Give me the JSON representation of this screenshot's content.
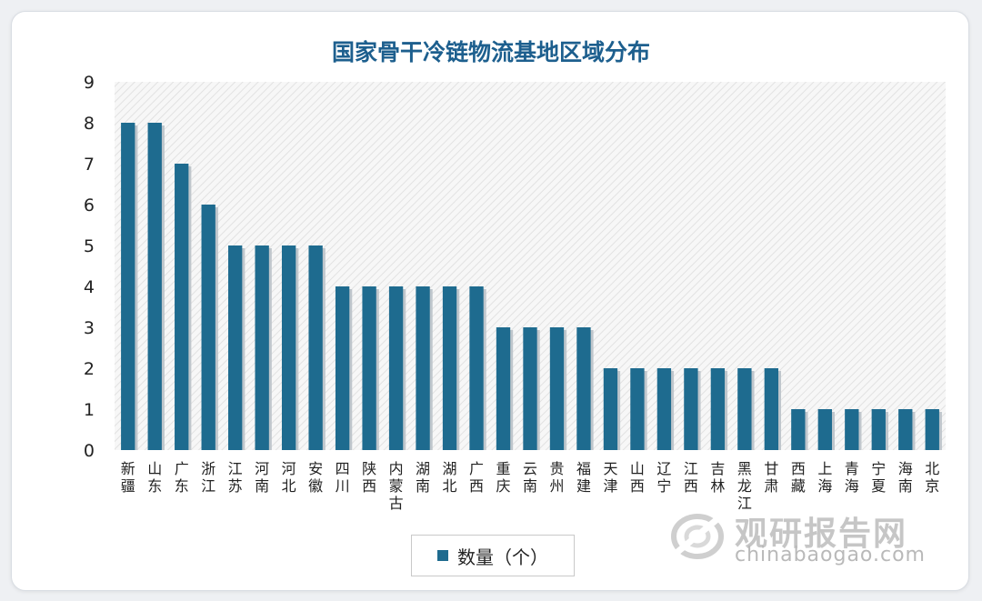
{
  "chart_data": {
    "type": "bar",
    "title": "国家骨干冷链物流基地区域分布",
    "categories": [
      "新疆",
      "山东",
      "广东",
      "浙江",
      "江苏",
      "河南",
      "河北",
      "安徽",
      "四川",
      "陕西",
      "内蒙古",
      "湖南",
      "湖北",
      "广西",
      "重庆",
      "云南",
      "贵州",
      "福建",
      "天津",
      "山西",
      "辽宁",
      "江西",
      "吉林",
      "黑龙江",
      "甘肃",
      "西藏",
      "上海",
      "青海",
      "宁夏",
      "海南",
      "北京"
    ],
    "series": [
      {
        "name": "数量（个）",
        "values": [
          8,
          8,
          7,
          6,
          5,
          5,
          5,
          5,
          4,
          4,
          4,
          4,
          4,
          4,
          3,
          3,
          3,
          3,
          2,
          2,
          2,
          2,
          2,
          2,
          2,
          1,
          1,
          1,
          1,
          1,
          1
        ]
      }
    ],
    "ylim": [
      0,
      9
    ],
    "yticks": [
      0,
      1,
      2,
      3,
      4,
      5,
      6,
      7,
      8,
      9
    ],
    "legend_position": "bottom",
    "bar_color": "#1e6b8f"
  },
  "watermark": {
    "cn": "观研报告网",
    "en": "chinabaogao.com"
  }
}
